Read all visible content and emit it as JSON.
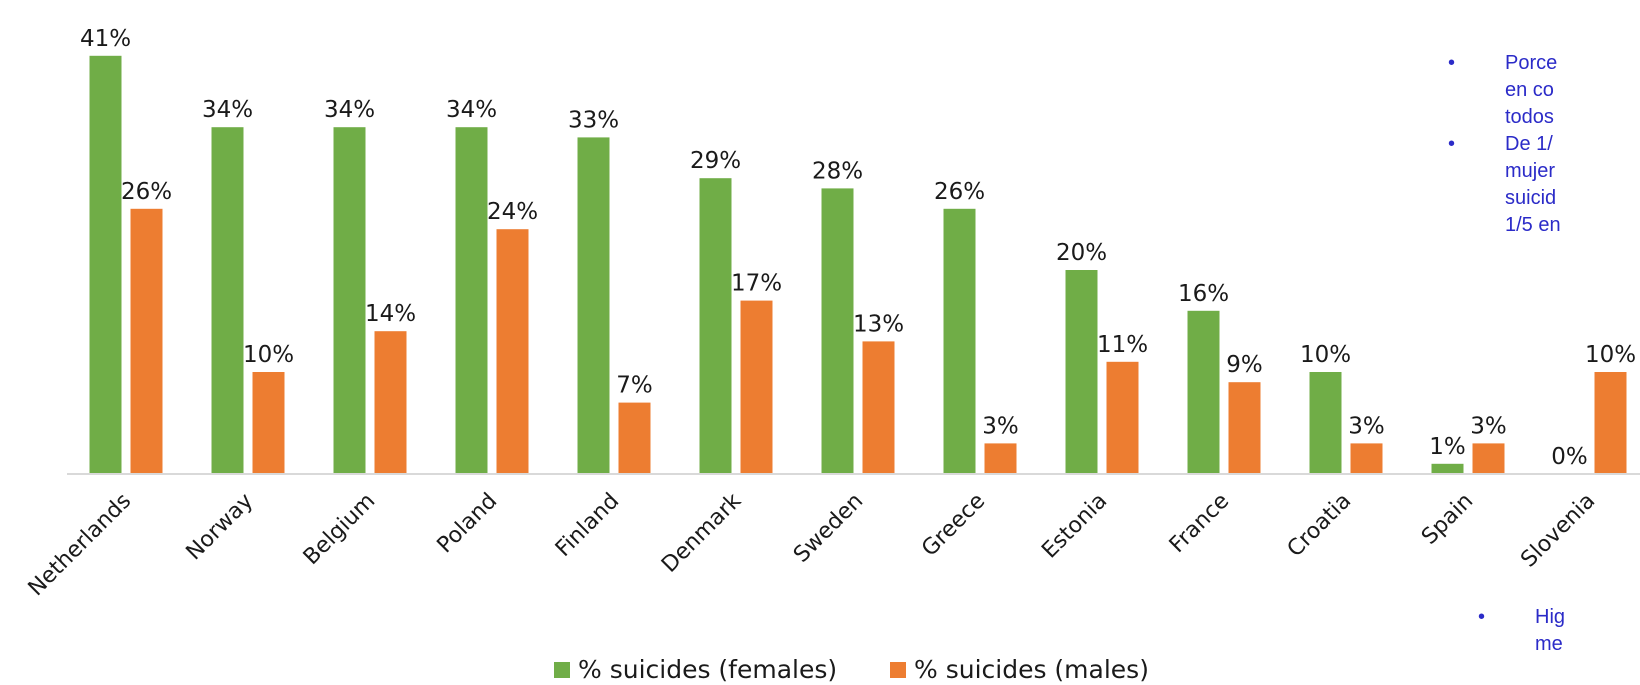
{
  "chart_data": {
    "type": "bar",
    "categories": [
      "Netherlands",
      "Norway",
      "Belgium",
      "Poland",
      "Finland",
      "Denmark",
      "Sweden",
      "Greece",
      "Estonia",
      "France",
      "Croatia",
      "Spain",
      "Slovenia"
    ],
    "series": [
      {
        "name": "% suicides (females)",
        "color": "#70ad47",
        "values": [
          41,
          34,
          34,
          34,
          33,
          29,
          28,
          26,
          20,
          16,
          10,
          1,
          0
        ]
      },
      {
        "name": "% suicides (males)",
        "color": "#ed7d31",
        "values": [
          26,
          10,
          14,
          24,
          7,
          17,
          13,
          3,
          11,
          9,
          3,
          3,
          10
        ]
      }
    ],
    "data_labels": [
      [
        "41%",
        "34%",
        "34%",
        "34%",
        "33%",
        "29%",
        "28%",
        "26%",
        "20%",
        "16%",
        "10%",
        "1%",
        "0%"
      ],
      [
        "26%",
        "10%",
        "14%",
        "24%",
        "7%",
        "17%",
        "13%",
        "3%",
        "11%",
        "9%",
        "3%",
        "3%",
        "10%"
      ]
    ],
    "ylim": [
      0,
      45
    ],
    "grid": false,
    "legend": "bottom",
    "title": "",
    "xlabel": "",
    "ylabel": ""
  },
  "notes": {
    "bullet": "•",
    "block1": [
      [
        "Porce",
        "en co",
        "todos"
      ],
      [
        "De 1/",
        "mujer",
        "suicid",
        "1/5 en"
      ]
    ],
    "block2": [
      [
        "Hig",
        "me"
      ]
    ]
  },
  "colors": {
    "note_text": "#2b2bc8",
    "axis": "#d9d9d9"
  }
}
